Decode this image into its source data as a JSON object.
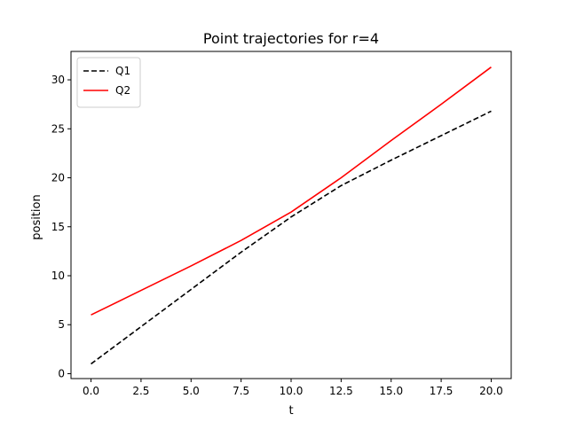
{
  "chart_data": {
    "type": "line",
    "title": "Point trajectories for r=4",
    "xlabel": "t",
    "ylabel": "position",
    "xlim": [
      -1.0,
      21.0
    ],
    "ylim": [
      -0.5,
      32.9
    ],
    "xticks": [
      0.0,
      2.5,
      5.0,
      7.5,
      10.0,
      12.5,
      15.0,
      17.5,
      20.0
    ],
    "xtick_labels": [
      "0.0",
      "2.5",
      "5.0",
      "7.5",
      "10.0",
      "12.5",
      "15.0",
      "17.5",
      "20.0"
    ],
    "yticks": [
      0,
      5,
      10,
      15,
      20,
      25,
      30
    ],
    "ytick_labels": [
      "0",
      "5",
      "10",
      "15",
      "20",
      "25",
      "30"
    ],
    "grid": false,
    "legend_position": "top-left",
    "series": [
      {
        "name": "Q1",
        "color": "#000000",
        "linestyle": "dashed",
        "x": [
          0,
          2.5,
          5,
          7.5,
          10,
          12.5,
          15,
          17.5,
          20
        ],
        "y": [
          1.0,
          4.8,
          8.6,
          12.4,
          16.0,
          19.2,
          21.8,
          24.3,
          26.8
        ]
      },
      {
        "name": "Q2",
        "color": "#ff0000",
        "linestyle": "solid",
        "x": [
          0,
          2.5,
          5,
          7.5,
          10,
          12.5,
          15,
          17.5,
          20
        ],
        "y": [
          6.0,
          8.5,
          11.0,
          13.6,
          16.5,
          20.0,
          23.8,
          27.5,
          31.3
        ]
      }
    ]
  }
}
